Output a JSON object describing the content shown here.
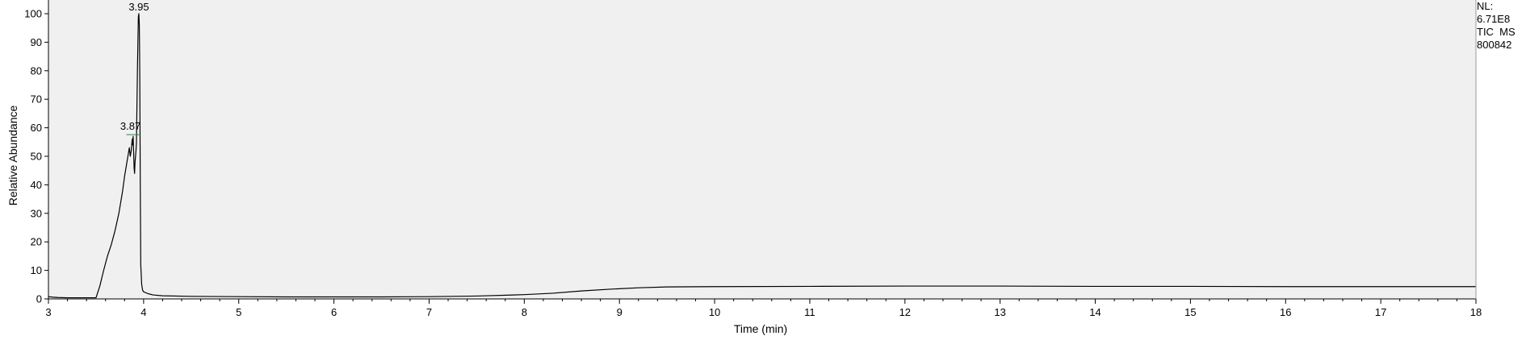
{
  "chart_data": {
    "type": "line",
    "title": "",
    "xlabel": "Time (min)",
    "ylabel": "Relative Abundance",
    "xlim": [
      3,
      18
    ],
    "ylim": [
      0,
      100
    ],
    "x_ticks": [
      3,
      4,
      5,
      6,
      7,
      8,
      9,
      10,
      11,
      12,
      13,
      14,
      15,
      16,
      17,
      18
    ],
    "y_ticks": [
      0,
      10,
      20,
      30,
      40,
      50,
      60,
      70,
      80,
      90,
      100
    ],
    "grid": false,
    "colors": {
      "plot_bg": "#f0f0f0",
      "trace": "#000000",
      "peak_marker": "#2e8b2e"
    },
    "series": [
      {
        "x": [
          3.0,
          3.05,
          3.1,
          3.2,
          3.3,
          3.4,
          3.5,
          3.54,
          3.58,
          3.62,
          3.66,
          3.7,
          3.74,
          3.78,
          3.8,
          3.82,
          3.84,
          3.85,
          3.86,
          3.87,
          3.88,
          3.885,
          3.89,
          3.9,
          3.905,
          3.91,
          3.92,
          3.925,
          3.93,
          3.935,
          3.94,
          3.945,
          3.95,
          3.955,
          3.96,
          3.965,
          3.97,
          3.98,
          3.99,
          4.0,
          4.05,
          4.1,
          4.2,
          4.5,
          5.0,
          5.5,
          6.0,
          6.5,
          7.0,
          7.5,
          8.0,
          8.3,
          8.6,
          8.9,
          9.2,
          9.5,
          10.0,
          11.0,
          12.0,
          13.0,
          14.0,
          15.0,
          16.0,
          17.0,
          18.0
        ],
        "y": [
          0.8,
          0.6,
          0.5,
          0.4,
          0.4,
          0.4,
          0.4,
          4.5,
          10,
          15,
          19,
          24,
          30,
          38,
          43,
          47,
          51,
          53,
          50,
          52,
          56,
          54,
          57,
          46,
          44,
          48,
          52,
          55,
          68,
          80,
          90,
          99,
          100,
          96,
          78,
          40,
          12,
          5,
          3,
          2.5,
          1.8,
          1.4,
          1.1,
          0.9,
          0.8,
          0.7,
          0.7,
          0.7,
          0.8,
          1.0,
          1.5,
          2.0,
          2.8,
          3.4,
          3.9,
          4.2,
          4.3,
          4.4,
          4.5,
          4.5,
          4.4,
          4.4,
          4.3,
          4.3,
          4.3
        ]
      }
    ],
    "peak_annotations": [
      {
        "x": 3.87,
        "y": 57.6,
        "label": "3.87"
      },
      {
        "x": 3.95,
        "y": 100,
        "label": "3.95"
      }
    ]
  },
  "info_box": {
    "lines": [
      "NL:",
      "6.71E8",
      "TIC  MS",
      "800842"
    ]
  }
}
